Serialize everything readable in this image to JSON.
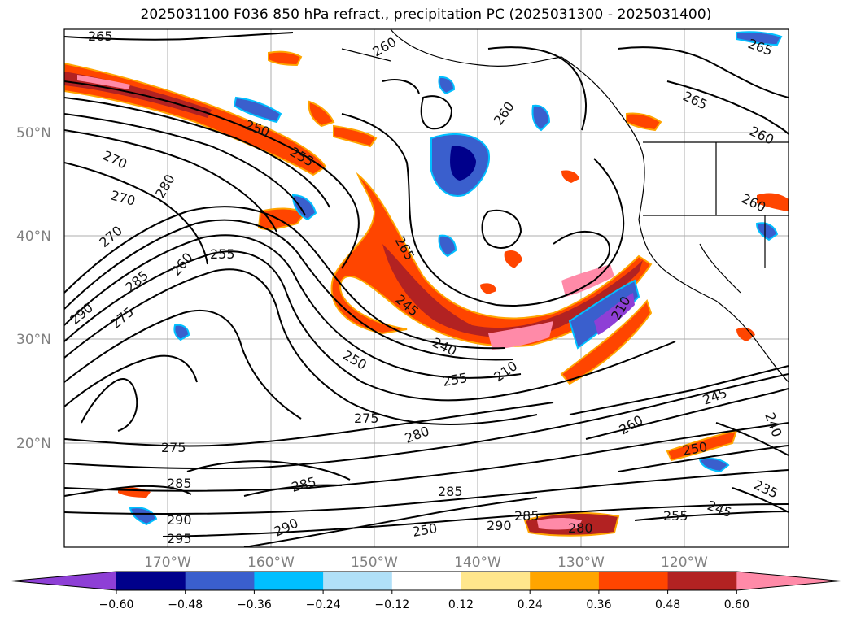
{
  "title": "2025031100 F036 850 hPa refract., precipitation PC (2025031300 - 2025031400)",
  "map": {
    "lat_labels": [
      "50°N",
      "40°N",
      "30°N",
      "20°N"
    ],
    "lon_labels": [
      "170°W",
      "160°W",
      "150°W",
      "140°W",
      "130°W",
      "120°W"
    ],
    "contour_labels": [
      "265",
      "260",
      "250",
      "255",
      "270",
      "270",
      "280",
      "270",
      "285",
      "255",
      "260",
      "290",
      "275",
      "265",
      "245",
      "240",
      "250",
      "255",
      "210",
      "260",
      "260",
      "265",
      "260",
      "210",
      "275",
      "280",
      "285",
      "285",
      "290",
      "250",
      "275",
      "285",
      "295",
      "290",
      "250",
      "245",
      "235",
      "255",
      "245",
      "260",
      "240",
      "290",
      "280",
      "265",
      "285"
    ]
  },
  "colorbar": {
    "ticks": [
      "−0.60",
      "−0.48",
      "−0.36",
      "−0.24",
      "−0.12",
      "0.12",
      "0.24",
      "0.36",
      "0.48",
      "0.60"
    ],
    "colors": [
      "#8e3fd6",
      "#00008b",
      "#3a5fcd",
      "#00bfff",
      "#b0e0f8",
      "#ffffff",
      "#ffe68c",
      "#ffa500",
      "#ff4500",
      "#b22222",
      "#ff8aa8"
    ]
  }
}
